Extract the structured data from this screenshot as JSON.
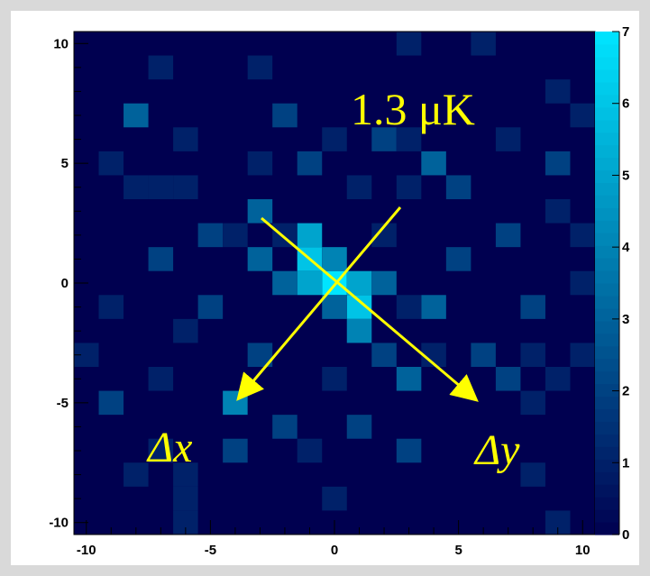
{
  "chart_data": {
    "type": "heatmap",
    "title": "",
    "xlabel": "",
    "ylabel": "",
    "x_range": [
      -10.5,
      10.5
    ],
    "y_range": [
      -10.5,
      10.5
    ],
    "x_ticks": [
      "-10",
      "-5",
      "0",
      "5",
      "10"
    ],
    "y_ticks": [
      "10",
      "5",
      "0",
      "-5",
      "-10"
    ],
    "colorbar": {
      "range": [
        0,
        7
      ],
      "ticks": [
        "0",
        "1",
        "2",
        "3",
        "4",
        "5",
        "6",
        "7"
      ],
      "low_color": "#000050",
      "high_color": "#00e5ff"
    },
    "cells": [
      {
        "x": 0,
        "y": 0,
        "v": 7
      },
      {
        "x": -1,
        "y": 1,
        "v": 6
      },
      {
        "x": -1,
        "y": 2,
        "v": 5
      },
      {
        "x": -1,
        "y": 0,
        "v": 5
      },
      {
        "x": 1,
        "y": 0,
        "v": 5
      },
      {
        "x": 1,
        "y": -1,
        "v": 6
      },
      {
        "x": 0,
        "y": 1,
        "v": 4
      },
      {
        "x": 0,
        "y": -1,
        "v": 3
      },
      {
        "x": -2,
        "y": 0,
        "v": 3
      },
      {
        "x": 2,
        "y": 0,
        "v": 3
      },
      {
        "x": 1,
        "y": -2,
        "v": 4
      },
      {
        "x": -3,
        "y": 1,
        "v": 3
      },
      {
        "x": 4,
        "y": -1,
        "v": 3
      },
      {
        "x": -3,
        "y": 3,
        "v": 3
      },
      {
        "x": 4,
        "y": 5,
        "v": 3
      },
      {
        "x": -8,
        "y": 7,
        "v": 3
      },
      {
        "x": 3,
        "y": -4,
        "v": 3
      },
      {
        "x": -4,
        "y": -5,
        "v": 4
      },
      {
        "x": -1,
        "y": 5,
        "v": 2
      },
      {
        "x": 2,
        "y": 6,
        "v": 2
      },
      {
        "x": -2,
        "y": 7,
        "v": 2
      },
      {
        "x": -5,
        "y": 2,
        "v": 2
      },
      {
        "x": 7,
        "y": 2,
        "v": 2
      },
      {
        "x": 9,
        "y": 5,
        "v": 2
      },
      {
        "x": -7,
        "y": 1,
        "v": 2
      },
      {
        "x": 2,
        "y": -3,
        "v": 2
      },
      {
        "x": -3,
        "y": -3,
        "v": 2
      },
      {
        "x": -5,
        "y": -1,
        "v": 2
      },
      {
        "x": 6,
        "y": -3,
        "v": 2
      },
      {
        "x": 7,
        "y": -4,
        "v": 2
      },
      {
        "x": -9,
        "y": -5,
        "v": 2
      },
      {
        "x": 1,
        "y": -6,
        "v": 2
      },
      {
        "x": -2,
        "y": -6,
        "v": 2
      },
      {
        "x": -4,
        "y": -7,
        "v": 2
      },
      {
        "x": 3,
        "y": -7,
        "v": 2
      },
      {
        "x": 8,
        "y": -1,
        "v": 2
      },
      {
        "x": 5,
        "y": 1,
        "v": 2
      },
      {
        "x": 5,
        "y": 4,
        "v": 2
      },
      {
        "x": -9,
        "y": 5,
        "v": 1
      },
      {
        "x": -8,
        "y": 4,
        "v": 1
      },
      {
        "x": -7,
        "y": 4,
        "v": 1
      },
      {
        "x": -6,
        "y": 4,
        "v": 1
      },
      {
        "x": 3,
        "y": 10,
        "v": 1
      },
      {
        "x": 6,
        "y": 10,
        "v": 1
      },
      {
        "x": -7,
        "y": 9,
        "v": 1
      },
      {
        "x": -3,
        "y": 9,
        "v": 1
      },
      {
        "x": 9,
        "y": 8,
        "v": 1
      },
      {
        "x": 10,
        "y": 7,
        "v": 1
      },
      {
        "x": -6,
        "y": 6,
        "v": 1
      },
      {
        "x": 0,
        "y": 6,
        "v": 1
      },
      {
        "x": 3,
        "y": 6,
        "v": 1
      },
      {
        "x": 7,
        "y": 6,
        "v": 1
      },
      {
        "x": -4,
        "y": 2,
        "v": 1
      },
      {
        "x": -2,
        "y": 2,
        "v": 1
      },
      {
        "x": 2,
        "y": 2,
        "v": 1
      },
      {
        "x": -3,
        "y": 5,
        "v": 1
      },
      {
        "x": 1,
        "y": 4,
        "v": 1
      },
      {
        "x": 3,
        "y": 4,
        "v": 1
      },
      {
        "x": 9,
        "y": 3,
        "v": 1
      },
      {
        "x": 10,
        "y": 2,
        "v": 1
      },
      {
        "x": -9,
        "y": -1,
        "v": 1
      },
      {
        "x": 10,
        "y": 0,
        "v": 1
      },
      {
        "x": -10,
        "y": -3,
        "v": 1
      },
      {
        "x": -6,
        "y": -2,
        "v": 1
      },
      {
        "x": 3,
        "y": -1,
        "v": 1
      },
      {
        "x": 4,
        "y": -3,
        "v": 1
      },
      {
        "x": 8,
        "y": -3,
        "v": 1
      },
      {
        "x": 10,
        "y": -3,
        "v": 1
      },
      {
        "x": -7,
        "y": -4,
        "v": 1
      },
      {
        "x": 0,
        "y": -4,
        "v": 1
      },
      {
        "x": 8,
        "y": -5,
        "v": 1
      },
      {
        "x": 9,
        "y": -4,
        "v": 1
      },
      {
        "x": -7,
        "y": -7,
        "v": 1
      },
      {
        "x": -1,
        "y": -7,
        "v": 1
      },
      {
        "x": 8,
        "y": -8,
        "v": 1
      },
      {
        "x": -8,
        "y": -8,
        "v": 1
      },
      {
        "x": -6,
        "y": -8,
        "v": 1
      },
      {
        "x": -6,
        "y": -9,
        "v": 1
      },
      {
        "x": 0,
        "y": -9,
        "v": 1
      },
      {
        "x": 9,
        "y": -10,
        "v": 1
      },
      {
        "x": -6,
        "y": -10,
        "v": 1
      }
    ],
    "annotations": {
      "temperature": "1.3 μK",
      "arrow_x_label": "Δx",
      "arrow_y_label": "Δy"
    }
  }
}
